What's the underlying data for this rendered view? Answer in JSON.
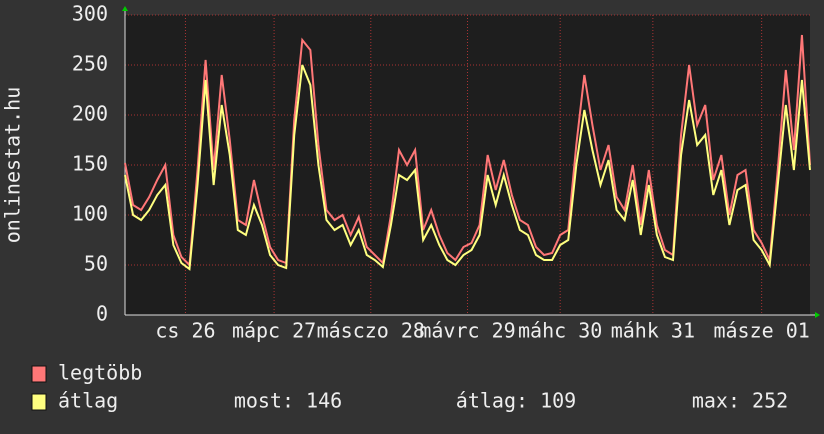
{
  "chart_data": {
    "type": "line",
    "ylabel": "onlinestat.hu",
    "xlim": [
      0,
      170
    ],
    "ylim": [
      0,
      300
    ],
    "yticks": [
      0,
      50,
      100,
      150,
      200,
      250,
      300
    ],
    "xticks": [
      {
        "value": 15,
        "label": "cs 26"
      },
      {
        "value": 37,
        "label": "mápc 27"
      },
      {
        "value": 61,
        "label": "másczo 28"
      },
      {
        "value": 85,
        "label": "mávrc 29"
      },
      {
        "value": 108,
        "label": "máhc 30"
      },
      {
        "value": 131,
        "label": "máhk 31"
      },
      {
        "value": 158,
        "label": "másze 01"
      }
    ],
    "grid": true,
    "x": [
      0,
      2,
      4,
      6,
      8,
      10,
      12,
      14,
      16,
      18,
      20,
      22,
      24,
      26,
      28,
      30,
      32,
      34,
      36,
      38,
      40,
      42,
      44,
      46,
      48,
      50,
      52,
      54,
      56,
      58,
      60,
      62,
      64,
      66,
      68,
      70,
      72,
      74,
      76,
      78,
      80,
      82,
      84,
      86,
      88,
      90,
      92,
      94,
      96,
      98,
      100,
      102,
      104,
      106,
      108,
      110,
      112,
      114,
      116,
      118,
      120,
      122,
      124,
      126,
      128,
      130,
      132,
      134,
      136,
      138,
      140,
      142,
      144,
      146,
      148,
      150,
      152,
      154,
      156,
      158,
      160,
      162,
      164,
      166,
      168,
      170
    ],
    "series": [
      {
        "name": "legtöbb",
        "color": "#ff7777",
        "values": [
          152,
          110,
          105,
          118,
          135,
          150,
          80,
          58,
          50,
          145,
          255,
          145,
          240,
          175,
          95,
          90,
          135,
          100,
          68,
          55,
          52,
          195,
          275,
          265,
          170,
          105,
          95,
          100,
          80,
          98,
          68,
          60,
          52,
          100,
          165,
          150,
          165,
          85,
          105,
          80,
          62,
          55,
          68,
          72,
          90,
          160,
          125,
          155,
          120,
          95,
          90,
          68,
          60,
          62,
          80,
          85,
          170,
          240,
          190,
          145,
          170,
          118,
          105,
          150,
          90,
          145,
          90,
          65,
          60,
          180,
          250,
          190,
          210,
          135,
          160,
          100,
          140,
          145,
          85,
          72,
          55,
          145,
          245,
          165,
          280,
          150
        ]
      },
      {
        "name": "átlag",
        "color": "#ffff80",
        "values": [
          140,
          100,
          95,
          105,
          120,
          130,
          70,
          52,
          46,
          130,
          235,
          130,
          210,
          160,
          85,
          80,
          110,
          90,
          60,
          50,
          47,
          180,
          250,
          230,
          150,
          95,
          85,
          90,
          70,
          85,
          60,
          55,
          48,
          90,
          140,
          135,
          145,
          75,
          90,
          70,
          55,
          50,
          60,
          65,
          80,
          140,
          110,
          140,
          110,
          85,
          80,
          60,
          55,
          55,
          70,
          75,
          150,
          205,
          165,
          130,
          155,
          105,
          95,
          135,
          80,
          130,
          80,
          58,
          55,
          160,
          215,
          170,
          180,
          120,
          145,
          90,
          125,
          130,
          75,
          65,
          50,
          130,
          210,
          145,
          235,
          145
        ]
      }
    ],
    "stats": [
      "most: 146",
      "átlag: 109",
      "max: 252"
    ]
  }
}
